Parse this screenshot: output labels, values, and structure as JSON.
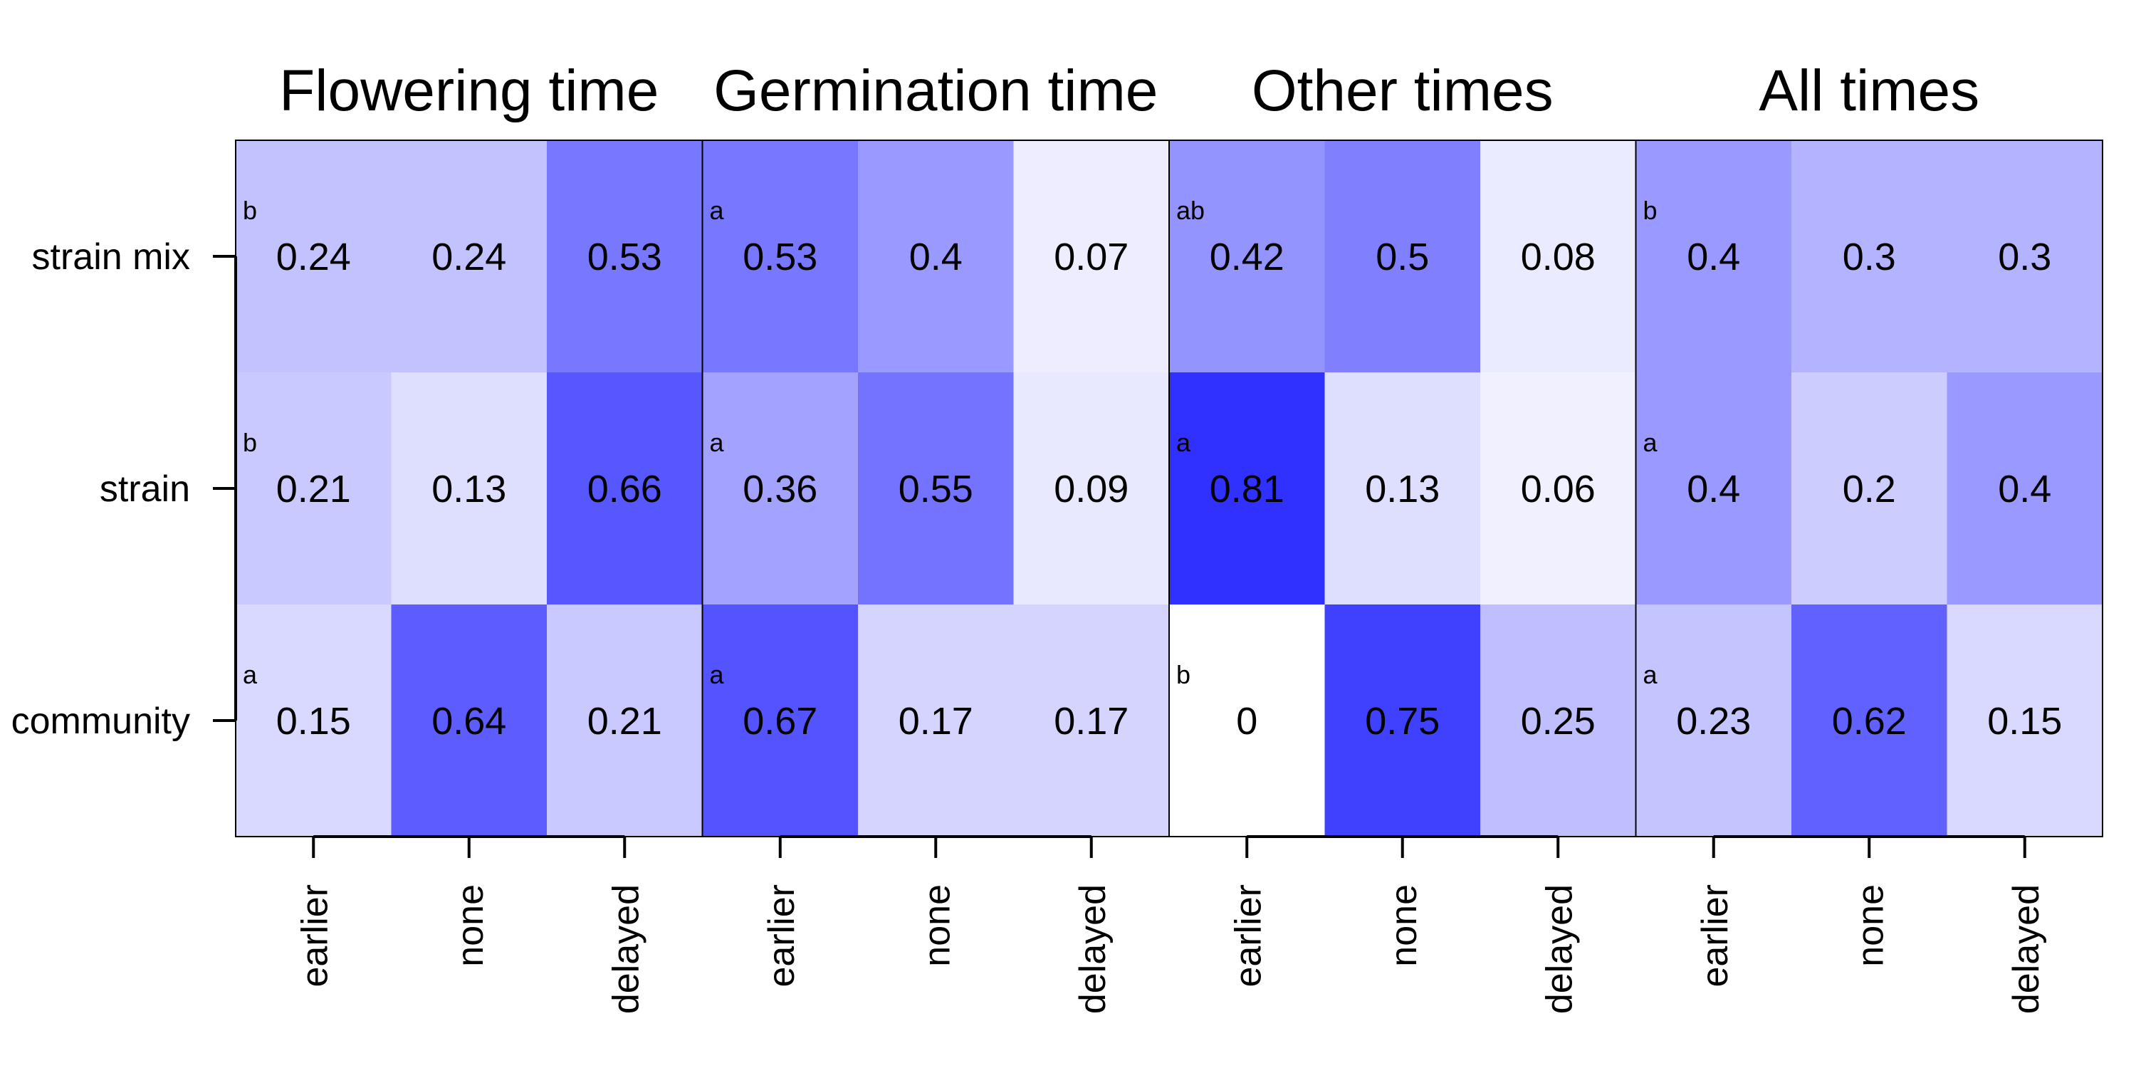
{
  "chart_data": {
    "type": "heatmap",
    "panels": [
      {
        "title": "Flowering time",
        "rows": [
          {
            "label": "strain mix",
            "letter": "b",
            "values": [
              0.24,
              0.24,
              0.53
            ]
          },
          {
            "label": "strain",
            "letter": "b",
            "values": [
              0.21,
              0.13,
              0.66
            ]
          },
          {
            "label": "community",
            "letter": "a",
            "values": [
              0.15,
              0.64,
              0.21
            ]
          }
        ]
      },
      {
        "title": "Germination time",
        "rows": [
          {
            "label": "strain mix",
            "letter": "a",
            "values": [
              0.53,
              0.4,
              0.07
            ]
          },
          {
            "label": "strain",
            "letter": "a",
            "values": [
              0.36,
              0.55,
              0.09
            ]
          },
          {
            "label": "community",
            "letter": "a",
            "values": [
              0.67,
              0.17,
              0.17
            ]
          }
        ]
      },
      {
        "title": "Other times",
        "rows": [
          {
            "label": "strain mix",
            "letter": "ab",
            "values": [
              0.42,
              0.5,
              0.08
            ]
          },
          {
            "label": "strain",
            "letter": "a",
            "values": [
              0.81,
              0.13,
              0.06
            ]
          },
          {
            "label": "community",
            "letter": "b",
            "values": [
              0,
              0.75,
              0.25
            ]
          }
        ]
      },
      {
        "title": "All times",
        "rows": [
          {
            "label": "strain mix",
            "letter": "b",
            "values": [
              0.4,
              0.3,
              0.3
            ]
          },
          {
            "label": "strain",
            "letter": "a",
            "values": [
              0.4,
              0.2,
              0.4
            ]
          },
          {
            "label": "community",
            "letter": "a",
            "values": [
              0.23,
              0.62,
              0.15
            ]
          }
        ]
      }
    ],
    "row_labels": [
      "strain mix",
      "strain",
      "community"
    ],
    "column_labels": [
      "earlier",
      "none",
      "delayed"
    ],
    "value_range": [
      0,
      1
    ],
    "colors": {
      "low": "#ffffff",
      "high": "#0000ff"
    },
    "grid": false,
    "legend": "none"
  }
}
